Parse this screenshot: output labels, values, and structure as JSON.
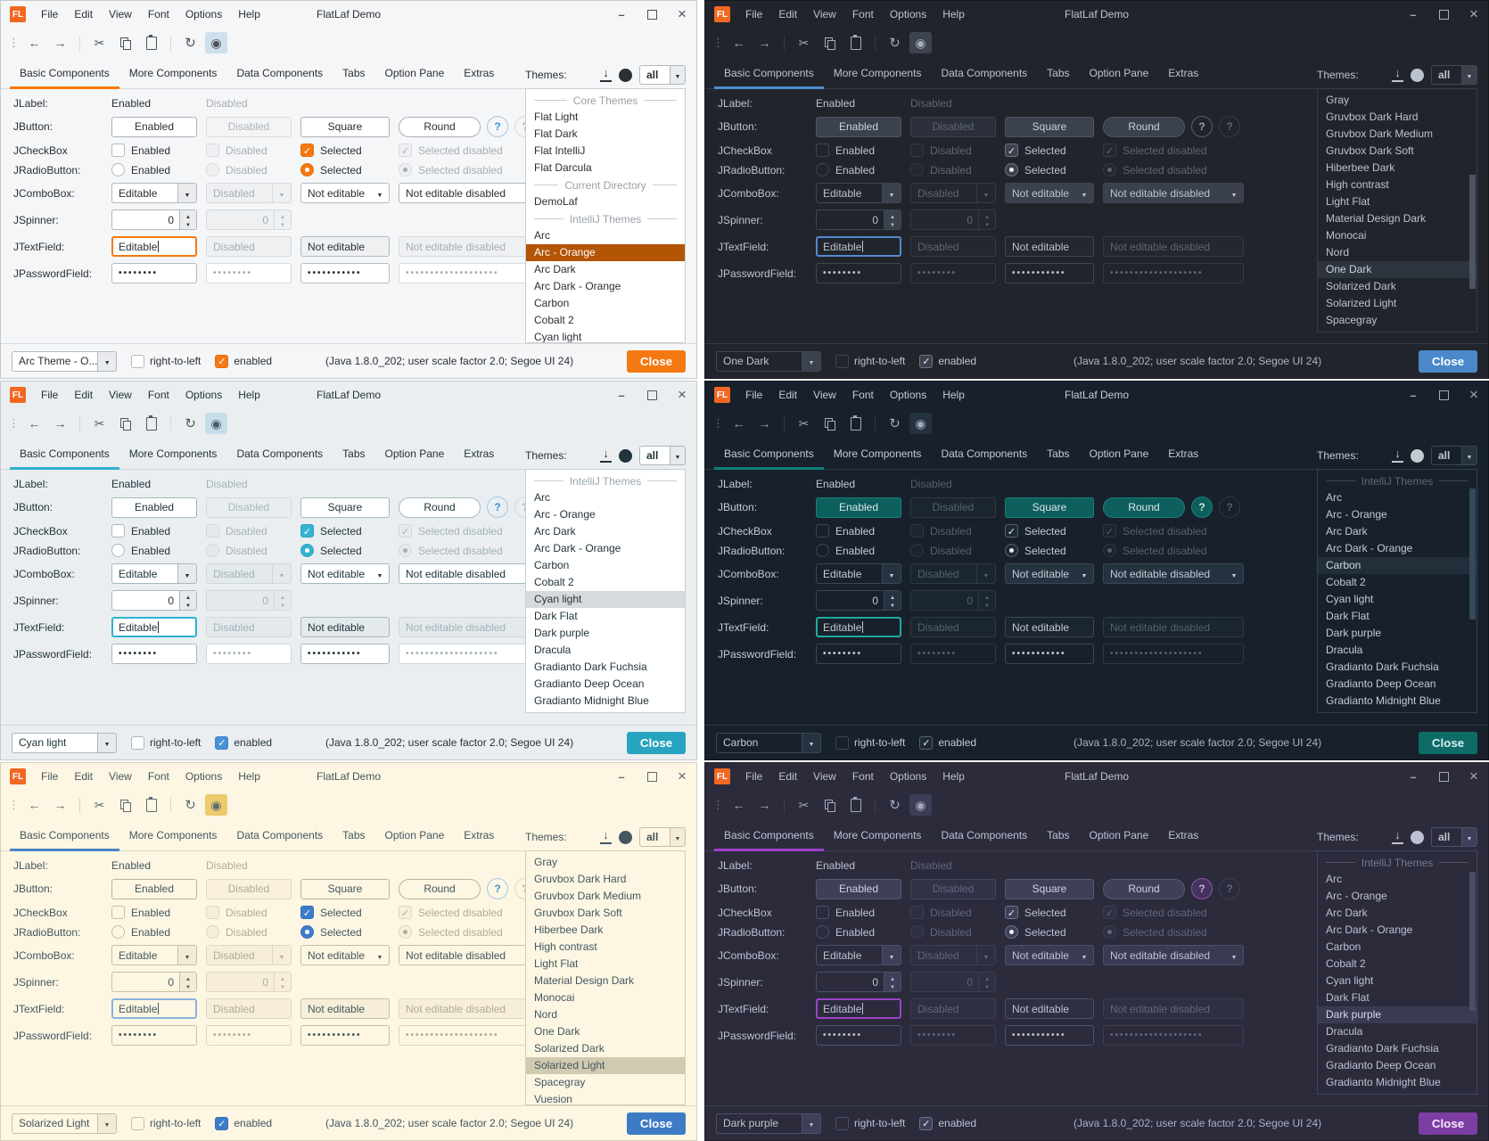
{
  "common": {
    "titlebar": {
      "logo": "FL",
      "title": "FlatLaf Demo",
      "menus": [
        "File",
        "Edit",
        "View",
        "Font",
        "Options",
        "Help"
      ]
    },
    "toolbar": {
      "icons": [
        "back",
        "forward",
        "cut",
        "copy",
        "paste",
        "refresh",
        "show-eye"
      ]
    },
    "tabs": [
      "Basic Components",
      "More Components",
      "Data Components",
      "Tabs",
      "Option Pane",
      "Extras"
    ],
    "themes_header": {
      "label": "Themes:",
      "filter_value": "all"
    },
    "rows": {
      "jlabel": {
        "label": "JLabel:",
        "enabled": "Enabled",
        "disabled": "Disabled"
      },
      "jbutton": {
        "label": "JButton:",
        "enabled": "Enabled",
        "disabled": "Disabled",
        "square": "Square",
        "round": "Round",
        "help": "?"
      },
      "jcheckbox": {
        "label": "JCheckBox",
        "enabled": "Enabled",
        "disabled": "Disabled",
        "selected": "Selected",
        "selected_disabled": "Selected disabled"
      },
      "jradio": {
        "label": "JRadioButton:",
        "enabled": "Enabled",
        "disabled": "Disabled",
        "selected": "Selected",
        "selected_disabled": "Selected disabled"
      },
      "jcombo": {
        "label": "JComboBox:",
        "editable": "Editable",
        "disabled": "Disabled",
        "not_editable": "Not editable",
        "not_editable_disabled": "Not editable disabled"
      },
      "jspinner": {
        "label": "JSpinner:",
        "value": "0",
        "value_disabled": "0"
      },
      "jtextfield": {
        "label": "JTextField:",
        "editable": "Editable",
        "disabled": "Disabled",
        "not_editable": "Not editable",
        "not_editable_disabled": "Not editable disabled"
      },
      "jpassword": {
        "label": "JPasswordField:",
        "p1": "••••••••",
        "p2": "••••••••",
        "p3": "•••••••••••",
        "p4": "•••••••••••••••••••"
      }
    },
    "bottom": {
      "rtl_label": "right-to-left",
      "enabled_label": "enabled",
      "status": "(Java 1.8.0_202;  user scale factor 2.0; Segoe UI 24)",
      "close_label": "Close"
    }
  },
  "panels": [
    {
      "theme": "Arc - Orange",
      "combo_value": "Arc Theme - O...",
      "themes": {
        "scrollbar": false,
        "items": [
          {
            "separator": true,
            "label": "Core Themes"
          },
          {
            "label": "Flat Light"
          },
          {
            "label": "Flat Dark"
          },
          {
            "label": "Flat IntelliJ"
          },
          {
            "label": "Flat Darcula"
          },
          {
            "separator": true,
            "label": "Current Directory"
          },
          {
            "label": "DemoLaf"
          },
          {
            "separator": true,
            "label": "IntelliJ Themes"
          },
          {
            "label": "Arc"
          },
          {
            "label": "Arc - Orange",
            "selected": true
          },
          {
            "label": "Arc Dark"
          },
          {
            "label": "Arc Dark - Orange"
          },
          {
            "label": "Carbon"
          },
          {
            "label": "Cobalt 2"
          },
          {
            "label": "Cyan light"
          }
        ]
      },
      "colors": {
        "winBorder": "#c6cacd",
        "bg": "#f5f6f7",
        "fg": "#2a2f35",
        "disabledFg": "#a8adb3",
        "border": "#b3b9c0",
        "disabledBorder": "#d6dade",
        "fieldBg": "#ffffff",
        "disabledFieldBg": "#eef0f2",
        "tabLine": "#f57910",
        "focus": "#f57910",
        "btnBg": "#ffffff",
        "btnBorder": "#aab1b8",
        "btnFg": "#2a2f35",
        "btnDisabledBg": "#f3f4f5",
        "btnDisabledBorder": "#d9dce0",
        "btnDisabledFg": "#b0b5ba",
        "checkSelBg": "#f57910",
        "checkSelBorder": "#e06f0a",
        "checkFg": "#ffffff",
        "listSelBg": "#b25504",
        "listSelFg": "#ffffff",
        "closeBg": "#f57913",
        "closeFg": "#ffffff",
        "eyeBg": "#cfdfeb",
        "toolFg": "#4b5157",
        "sepFg": "#9aa1a8",
        "comboBtnBg": "#e9ebed",
        "comboRoBg": "#ffffff",
        "helpFg": "#3f92da",
        "helpBorder": "#9fc8ea",
        "helpBg": "transparent",
        "listBg": "#ffffff",
        "listBorder": "#c8ccd0",
        "statusFg": "#2a2f35",
        "bottomCheckBg": "#f57913",
        "bottomCheckBorder": "#e06f0a",
        "bottomCheckFg": "#ffffff"
      }
    },
    {
      "theme": "One Dark",
      "combo_value": "One Dark",
      "themes": {
        "scrollbar": true,
        "thumb_top": "35%",
        "thumb_height": "48%",
        "items": [
          {
            "label": "Gray"
          },
          {
            "label": "Gruvbox Dark Hard"
          },
          {
            "label": "Gruvbox Dark Medium"
          },
          {
            "label": "Gruvbox Dark Soft"
          },
          {
            "label": "Hiberbee Dark"
          },
          {
            "label": "High contrast"
          },
          {
            "label": "Light Flat"
          },
          {
            "label": "Material Design Dark"
          },
          {
            "label": "Monocai"
          },
          {
            "label": "Nord"
          },
          {
            "label": "One Dark",
            "selected": true
          },
          {
            "label": "Solarized Dark"
          },
          {
            "label": "Solarized Light"
          },
          {
            "label": "Spacegray"
          }
        ]
      },
      "colors": {
        "winBorder": "#15181d",
        "bg": "#21252b",
        "fg": "#bcc3ce",
        "disabledFg": "#5d6673",
        "border": "#3f4754",
        "disabledBorder": "#343b45",
        "fieldBg": "#21252b",
        "disabledFieldBg": "#23272e",
        "tabLine": "#4f8cd1",
        "focus": "#5689cf",
        "btnBg": "#3b414d",
        "btnBorder": "#4d5565",
        "btnFg": "#ccd2dc",
        "btnDisabledBg": "#2b303a",
        "btnDisabledBorder": "#3a414c",
        "btnDisabledFg": "#5d6673",
        "checkSelBg": "#3b414d",
        "checkSelBorder": "#6c7688",
        "checkFg": "#e8ebf0",
        "listSelBg": "#2e343e",
        "listSelFg": "#ccd2dc",
        "closeBg": "#4a88c9",
        "closeFg": "#ffffff",
        "eyeBg": "#3d444f",
        "toolFg": "#a7aeb9",
        "sepFg": "#6b7483",
        "comboBtnBg": "#3b414d",
        "comboRoBg": "#3a414d",
        "helpFg": "#9aa3af",
        "helpBorder": "#555e6b",
        "helpBg": "transparent",
        "scrollThumb": "#4c5564",
        "listBg": "#21252b",
        "listBorder": "#363d47",
        "statusFg": "#aeb5c0",
        "bottomCheckBg": "#3b414d",
        "bottomCheckBorder": "#6c7688",
        "bottomCheckFg": "#e8ebf0"
      }
    },
    {
      "theme": "Cyan light",
      "combo_value": "Cyan light",
      "themes": {
        "scrollbar": false,
        "items": [
          {
            "separator": true,
            "label": "IntelliJ Themes"
          },
          {
            "label": "Arc"
          },
          {
            "label": "Arc - Orange"
          },
          {
            "label": "Arc Dark"
          },
          {
            "label": "Arc Dark - Orange"
          },
          {
            "label": "Carbon"
          },
          {
            "label": "Cobalt 2"
          },
          {
            "label": "Cyan light",
            "selected": true
          },
          {
            "label": "Dark Flat"
          },
          {
            "label": "Dark purple"
          },
          {
            "label": "Dracula"
          },
          {
            "label": "Gradianto Dark Fuchsia"
          },
          {
            "label": "Gradianto Deep Ocean"
          },
          {
            "label": "Gradianto Midnight Blue"
          }
        ]
      },
      "colors": {
        "winBorder": "#c6cacd",
        "bg": "#ebeef0",
        "fg": "#21333c",
        "disabledFg": "#a2b2bb",
        "border": "#a7b7bf",
        "disabledBorder": "#cfd8dc",
        "fieldBg": "#ffffff",
        "disabledFieldBg": "#e4e9eb",
        "tabLine": "#2fb1cd",
        "focus": "#2fb1cd",
        "btnBg": "#ffffff",
        "btnBorder": "#a7b7bf",
        "btnFg": "#21333c",
        "btnDisabledBg": "#e9edef",
        "btnDisabledBorder": "#d2dbdf",
        "btnDisabledFg": "#a8b8c0",
        "checkSelBg": "#34b3cf",
        "checkSelBorder": "#2aa5c1",
        "checkFg": "#ffffff",
        "listSelBg": "#d6dadd",
        "listSelFg": "#21333c",
        "closeBg": "#27a4bf",
        "closeFg": "#ffffff",
        "eyeBg": "#c6dde8",
        "toolFg": "#4b5a62",
        "sepFg": "#98a6ad",
        "comboBtnBg": "#e6eaec",
        "comboRoBg": "#ffffff",
        "helpFg": "#3f92da",
        "helpBorder": "#9fc8ea",
        "helpBg": "transparent",
        "listBg": "#ffffff",
        "listBorder": "#c4ced3",
        "statusFg": "#21333c",
        "bottomCheckBg": "#4a90d4",
        "bottomCheckBorder": "#3e83c8",
        "bottomCheckFg": "#ffffff"
      }
    },
    {
      "theme": "Carbon",
      "combo_value": "Carbon",
      "themes": {
        "scrollbar": true,
        "thumb_top": "7%",
        "thumb_height": "55%",
        "items": [
          {
            "separator": true,
            "label": "IntelliJ Themes"
          },
          {
            "label": "Arc"
          },
          {
            "label": "Arc - Orange"
          },
          {
            "label": "Arc Dark"
          },
          {
            "label": "Arc Dark - Orange"
          },
          {
            "label": "Carbon",
            "selected": true
          },
          {
            "label": "Cobalt 2"
          },
          {
            "label": "Cyan light"
          },
          {
            "label": "Dark Flat"
          },
          {
            "label": "Dark purple"
          },
          {
            "label": "Dracula"
          },
          {
            "label": "Gradianto Dark Fuchsia"
          },
          {
            "label": "Gradianto Deep Ocean"
          },
          {
            "label": "Gradianto Midnight Blue"
          }
        ]
      },
      "colors": {
        "winBorder": "#0e141b",
        "bg": "#18212b",
        "fg": "#c3cbd2",
        "disabledFg": "#55606b",
        "border": "#3a4754",
        "disabledBorder": "#2e3945",
        "fieldBg": "#18212b",
        "disabledFieldBg": "#1b2530",
        "tabLine": "#0f7e78",
        "focus": "#1caca1",
        "btnBg": "#0c5f5d",
        "btnBorder": "#198079",
        "btnFg": "#dde4e8",
        "btnDisabledBg": "#1b2530",
        "btnDisabledBorder": "#2f3a47",
        "btnDisabledFg": "#55606b",
        "checkSelBg": "#1d2a36",
        "checkSelBorder": "#55636f",
        "checkFg": "#e8edf0",
        "listSelBg": "#222e3a",
        "listSelFg": "#d2d9de",
        "closeBg": "#0d6b68",
        "closeFg": "#d8f0ee",
        "eyeBg": "#243240",
        "toolFg": "#9fabb5",
        "sepFg": "#5b6773",
        "comboBtnBg": "#253341",
        "comboRoBg": "#253341",
        "helpFg": "#cfe6e4",
        "helpBorder": "#1a8079",
        "helpBg": "#0c5f5d",
        "scrollThumb": "#35485c",
        "listBg": "#18212b",
        "listBorder": "#31404e",
        "statusFg": "#aab4bd",
        "bottomCheckBg": "#1d2a36",
        "bottomCheckBorder": "#55636f",
        "bottomCheckFg": "#e8edf0"
      }
    },
    {
      "theme": "Solarized Light",
      "combo_value": "Solarized Light",
      "themes": {
        "scrollbar": false,
        "items": [
          {
            "label": "Gray"
          },
          {
            "label": "Gruvbox Dark Hard"
          },
          {
            "label": "Gruvbox Dark Medium"
          },
          {
            "label": "Gruvbox Dark Soft"
          },
          {
            "label": "Hiberbee Dark"
          },
          {
            "label": "High contrast"
          },
          {
            "label": "Light Flat"
          },
          {
            "label": "Material Design Dark"
          },
          {
            "label": "Monocai"
          },
          {
            "label": "Nord"
          },
          {
            "label": "One Dark"
          },
          {
            "label": "Solarized Dark"
          },
          {
            "label": "Solarized Light",
            "selected": true
          },
          {
            "label": "Spacegray"
          },
          {
            "label": "Vuesion"
          }
        ]
      },
      "colors": {
        "winBorder": "#d8d1b8",
        "bg": "#fdf6e3",
        "fg": "#44565e",
        "disabledFg": "#b3ac92",
        "border": "#c6bfa4",
        "disabledBorder": "#ded6bc",
        "fieldBg": "#fdf6e3",
        "disabledFieldBg": "#f6eed9",
        "tabLine": "#4a84c4",
        "focus": "#8cb4de",
        "btnBg": "#fdf6e3",
        "btnBorder": "#bcb596",
        "btnFg": "#44565e",
        "btnDisabledBg": "#f9f1dd",
        "btnDisabledBorder": "#e0d8be",
        "btnDisabledFg": "#b3ac92",
        "checkSelBg": "#3d7cc9",
        "checkSelBorder": "#356fb8",
        "checkFg": "#ffffff",
        "listSelBg": "#d0cab1",
        "listSelFg": "#44565e",
        "closeBg": "#3d7cc4",
        "closeFg": "#ffffff",
        "eyeBg": "#edcb6d",
        "toolFg": "#5b6b72",
        "sepFg": "#a9a189",
        "comboBtnBg": "#f3ebd4",
        "comboRoBg": "#fdf6e3",
        "helpFg": "#3f92da",
        "helpBorder": "#a5c8e4",
        "helpBg": "transparent",
        "listBg": "#fdf6e3",
        "listBorder": "#d6cfb4",
        "statusFg": "#44565e",
        "bottomCheckBg": "#3d7cc9",
        "bottomCheckBorder": "#356fb8",
        "bottomCheckFg": "#ffffff"
      }
    },
    {
      "theme": "Dark purple",
      "combo_value": "Dark purple",
      "themes": {
        "scrollbar": true,
        "thumb_top": "8%",
        "thumb_height": "58%",
        "items": [
          {
            "separator": true,
            "label": "IntelliJ Themes"
          },
          {
            "label": "Arc"
          },
          {
            "label": "Arc - Orange"
          },
          {
            "label": "Arc Dark"
          },
          {
            "label": "Arc Dark - Orange"
          },
          {
            "label": "Carbon"
          },
          {
            "label": "Cobalt 2"
          },
          {
            "label": "Cyan light"
          },
          {
            "label": "Dark Flat"
          },
          {
            "label": "Dark purple",
            "selected": true
          },
          {
            "label": "Dracula"
          },
          {
            "label": "Gradianto Dark Fuchsia"
          },
          {
            "label": "Gradianto Deep Ocean"
          },
          {
            "label": "Gradianto Midnight Blue"
          }
        ]
      },
      "colors": {
        "winBorder": "#20202c",
        "bg": "#2b2b3b",
        "fg": "#bfc1d3",
        "disabledFg": "#63647e",
        "border": "#4e5069",
        "disabledBorder": "#3d3e54",
        "fieldBg": "#2b2b3b",
        "disabledFieldBg": "#2e2f41",
        "tabLine": "#a23fd0",
        "focus": "#9a44c8",
        "btnBg": "#3e3f58",
        "btnBorder": "#585a76",
        "btnFg": "#d2d3e2",
        "btnDisabledBg": "#313246",
        "btnDisabledBorder": "#434560",
        "btnDisabledFg": "#63647e",
        "checkSelBg": "#3e3f58",
        "checkSelBorder": "#6f7190",
        "checkFg": "#eceef5",
        "listSelBg": "#3a3b52",
        "listSelFg": "#d8d9e6",
        "closeBg": "#7d3da3",
        "closeFg": "#f4eafc",
        "eyeBg": "#3c3d56",
        "toolFg": "#a6a8bd",
        "sepFg": "#747690",
        "comboBtnBg": "#3e3f58",
        "comboRoBg": "#3a3b52",
        "helpFg": "#cdb0e3",
        "helpBorder": "#8a56ad",
        "helpBg": "#46335c",
        "scrollThumb": "#4b4c66",
        "listBg": "#2b2b3b",
        "listBorder": "#44455e",
        "statusFg": "#aeb0c4",
        "bottomCheckBg": "#3e3f58",
        "bottomCheckBorder": "#6f7190",
        "bottomCheckFg": "#eceef5"
      }
    }
  ]
}
